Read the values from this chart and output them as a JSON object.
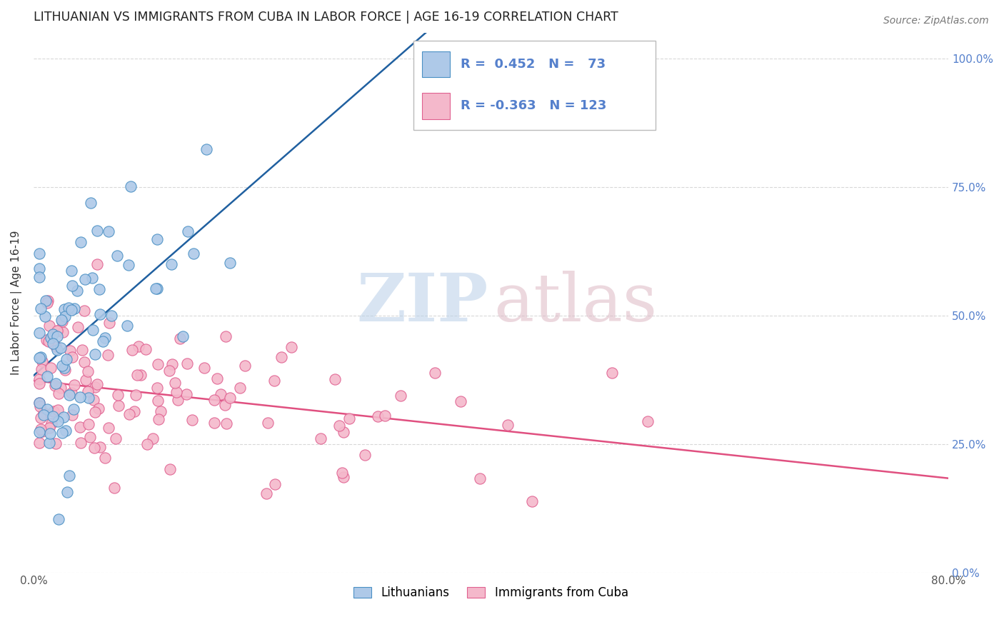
{
  "title": "LITHUANIAN VS IMMIGRANTS FROM CUBA IN LABOR FORCE | AGE 16-19 CORRELATION CHART",
  "source": "Source: ZipAtlas.com",
  "ylabel": "In Labor Force | Age 16-19",
  "legend_blue_label": "Lithuanians",
  "legend_pink_label": "Immigrants from Cuba",
  "R_blue": 0.452,
  "N_blue": 73,
  "R_pink": -0.363,
  "N_pink": 123,
  "blue_fill": "#aec9e8",
  "blue_edge": "#4a90c4",
  "pink_fill": "#f4b8cb",
  "pink_edge": "#e06090",
  "blue_line_color": "#2060a0",
  "pink_line_color": "#e05080",
  "background_color": "#ffffff",
  "grid_color": "#d8d8d8",
  "title_color": "#222222",
  "right_tick_color": "#5580cc",
  "xlim": [
    0.0,
    0.8
  ],
  "ylim": [
    0.0,
    1.05
  ]
}
